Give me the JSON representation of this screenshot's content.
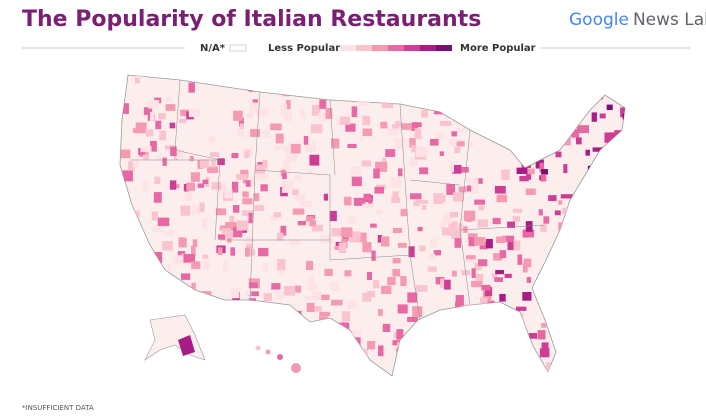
{
  "header": {
    "title": "The Popularity of Italian Restaurants",
    "logo": {
      "brand": "Google",
      "product": "News Lab"
    }
  },
  "legend": {
    "na": "N/A*",
    "low": "Less Popular",
    "high": "More Popular"
  },
  "footnote": "*INSUFFICIENT DATA"
}
